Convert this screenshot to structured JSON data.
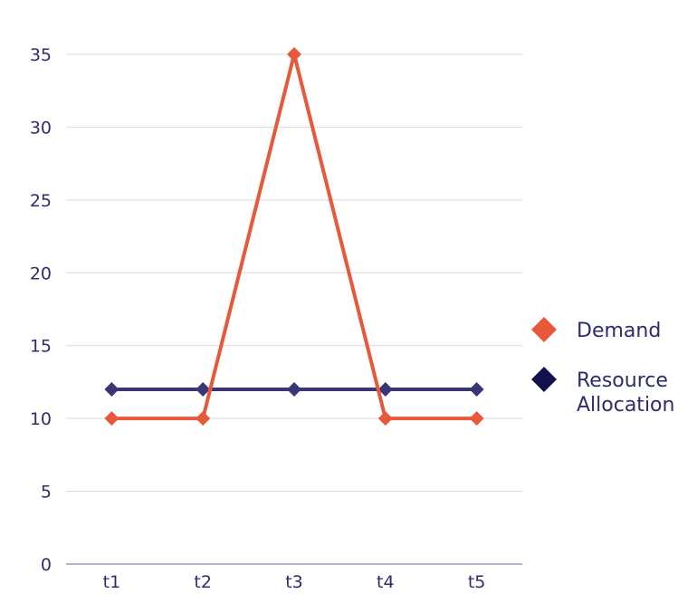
{
  "chart_data": {
    "type": "line",
    "categories": [
      "t1",
      "t2",
      "t3",
      "t4",
      "t5"
    ],
    "series": [
      {
        "name": "Demand",
        "values": [
          10,
          10,
          35,
          10,
          10
        ],
        "color": "#e8583a",
        "marker": "diamond"
      },
      {
        "name": "Resource Allocation",
        "values": [
          12,
          12,
          12,
          12,
          12
        ],
        "color": "#3a3575",
        "marker": "diamond"
      }
    ],
    "legend": [
      {
        "label": "Demand",
        "color": "#e8583a"
      },
      {
        "label_lines": [
          "Resource",
          "Allocation"
        ],
        "color": "#13114d"
      }
    ],
    "ylim": [
      0,
      35
    ],
    "yticks": [
      "0",
      "5",
      "10",
      "15",
      "20",
      "25",
      "30",
      "35"
    ],
    "grid": true,
    "legend_position": "right"
  }
}
